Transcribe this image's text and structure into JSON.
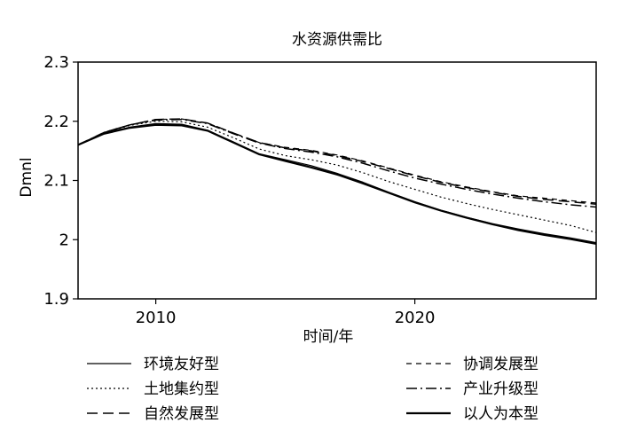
{
  "chart_data": {
    "type": "line",
    "title": "水资源供需比",
    "xlabel": "时间/年",
    "ylabel": "Dmnl",
    "xlim": [
      2007,
      2027
    ],
    "ylim": [
      1.9,
      2.3
    ],
    "y_ticks": [
      "2.3",
      "2.2",
      "2.1",
      "2",
      "1.9"
    ],
    "x_ticks": [
      "2010",
      "2020"
    ],
    "grid": false,
    "legend_position": "bottom",
    "x": [
      2007,
      2008,
      2009,
      2010,
      2011,
      2012,
      2013,
      2014,
      2015,
      2016,
      2017,
      2018,
      2019,
      2020,
      2021,
      2022,
      2023,
      2024,
      2025,
      2026,
      2027
    ],
    "series": [
      {
        "name": "环境友好型",
        "style": "solid-thin",
        "values": [
          2.16,
          2.18,
          2.19,
          2.196,
          2.195,
          2.185,
          2.165,
          2.145,
          2.135,
          2.125,
          2.112,
          2.097,
          2.08,
          2.064,
          2.05,
          2.038,
          2.027,
          2.018,
          2.01,
          2.003,
          1.995
        ]
      },
      {
        "name": "土地集约型",
        "style": "dotted",
        "values": [
          2.16,
          2.18,
          2.193,
          2.2,
          2.199,
          2.19,
          2.172,
          2.153,
          2.142,
          2.135,
          2.126,
          2.113,
          2.098,
          2.085,
          2.072,
          2.061,
          2.051,
          2.042,
          2.033,
          2.024,
          2.012
        ]
      },
      {
        "name": "自然发展型",
        "style": "long-dash",
        "values": [
          2.16,
          2.181,
          2.194,
          2.203,
          2.204,
          2.197,
          2.18,
          2.164,
          2.155,
          2.15,
          2.142,
          2.132,
          2.12,
          2.108,
          2.097,
          2.088,
          2.08,
          2.073,
          2.068,
          2.064,
          2.06
        ]
      },
      {
        "name": "协调发展型",
        "style": "short-dash",
        "values": [
          2.16,
          2.181,
          2.194,
          2.203,
          2.204,
          2.197,
          2.18,
          2.164,
          2.156,
          2.151,
          2.143,
          2.133,
          2.121,
          2.109,
          2.098,
          2.089,
          2.081,
          2.074,
          2.07,
          2.066,
          2.062
        ]
      },
      {
        "name": "产业升级型",
        "style": "dash-dot",
        "values": [
          2.16,
          2.181,
          2.194,
          2.202,
          2.203,
          2.196,
          2.179,
          2.163,
          2.154,
          2.148,
          2.14,
          2.129,
          2.116,
          2.104,
          2.094,
          2.085,
          2.077,
          2.07,
          2.064,
          2.059,
          2.055
        ]
      },
      {
        "name": "以人为本型",
        "style": "solid-thick",
        "values": [
          2.16,
          2.179,
          2.189,
          2.194,
          2.193,
          2.184,
          2.164,
          2.144,
          2.133,
          2.122,
          2.11,
          2.095,
          2.079,
          2.063,
          2.049,
          2.037,
          2.026,
          2.016,
          2.008,
          2.001,
          1.993
        ]
      }
    ]
  }
}
